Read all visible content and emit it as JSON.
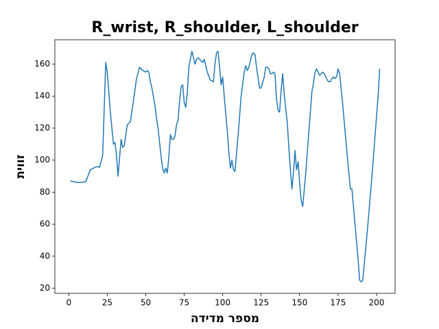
{
  "chart_data": {
    "type": "line",
    "title": "R_wrist, R_shoulder, L_shoulder",
    "x_label": "מספר מדידה",
    "y_label": "זווית",
    "x": [
      1,
      6,
      11,
      14,
      18,
      20,
      22,
      24,
      25,
      27,
      29,
      30,
      31,
      32,
      34,
      35,
      36,
      38,
      40,
      42,
      44,
      46,
      48,
      50,
      51,
      52,
      53,
      54,
      56,
      57,
      58,
      60,
      61,
      62,
      63,
      64,
      65,
      66,
      67,
      68,
      69,
      70,
      71,
      72,
      73,
      74,
      75,
      76,
      77,
      78,
      80,
      81,
      82,
      83,
      84,
      85,
      86,
      87,
      88,
      89,
      90,
      92,
      94,
      95,
      96,
      97,
      98,
      99,
      100,
      101,
      103,
      104,
      105,
      106,
      107,
      108,
      110,
      112,
      114,
      115,
      116,
      117,
      119,
      120,
      121,
      122,
      124,
      125,
      127,
      128,
      129,
      130,
      131,
      132,
      133,
      134,
      135,
      136,
      137,
      138,
      139,
      140,
      142,
      143,
      144,
      145,
      146,
      147,
      148,
      149,
      150,
      151,
      152,
      154,
      156,
      157,
      158,
      159,
      160,
      161,
      162,
      163,
      164,
      165,
      166,
      167,
      168,
      169,
      170,
      171,
      172,
      173,
      174,
      175,
      176,
      178,
      180,
      182,
      183,
      184,
      186,
      188,
      189,
      190,
      191,
      193,
      195,
      197,
      199,
      201,
      202
    ],
    "values": [
      87,
      86,
      86.5,
      94,
      96,
      95.5,
      103,
      161,
      155,
      130,
      110,
      111,
      103,
      90,
      113,
      108,
      109,
      122,
      124,
      137,
      151,
      158,
      156,
      155,
      156,
      155,
      149,
      145,
      134,
      126,
      120,
      102,
      95,
      92,
      95,
      92,
      102,
      116,
      113,
      113,
      115,
      122,
      125,
      137,
      146,
      147,
      136,
      133,
      142,
      158,
      168,
      164,
      160,
      163,
      164,
      163,
      162,
      161,
      163,
      159,
      155,
      150,
      149,
      160,
      167,
      168,
      158,
      147,
      152,
      140,
      118,
      105,
      95,
      100,
      94,
      93,
      115,
      140,
      155,
      159,
      156,
      158,
      166,
      167,
      166,
      158,
      145,
      145,
      152,
      158,
      158,
      157,
      154,
      154,
      155,
      154,
      138,
      131,
      130,
      144,
      154,
      141,
      123,
      108,
      94,
      82,
      92,
      106,
      94,
      99,
      86,
      75,
      71,
      92,
      118,
      130,
      143,
      148,
      155,
      157,
      155,
      153,
      154,
      155,
      154,
      152,
      150,
      149,
      149,
      151,
      152,
      151,
      152,
      157,
      154,
      135,
      113,
      92,
      82,
      82,
      60,
      38,
      25,
      24,
      25,
      45,
      67,
      90,
      115,
      140,
      157
    ],
    "color": "#1f77b4",
    "xlim": [
      -9.05,
      212.05
    ],
    "xticks": [
      0,
      25,
      50,
      75,
      100,
      125,
      150,
      175,
      200
    ],
    "ylim": [
      16.8,
      175.2
    ],
    "yticks": [
      20,
      40,
      60,
      80,
      100,
      120,
      140,
      160
    ],
    "grid": false
  }
}
